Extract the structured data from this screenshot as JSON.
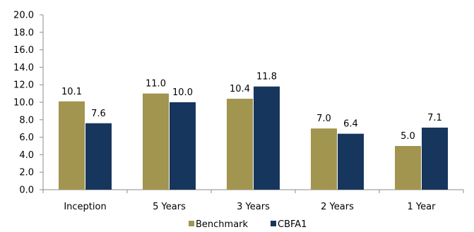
{
  "chart_data": {
    "type": "bar",
    "categories": [
      "Inception",
      "5 Years",
      "3 Years",
      "2 Years",
      "1 Year"
    ],
    "series": [
      {
        "name": "Benchmark",
        "values": [
          10.1,
          11.0,
          10.4,
          7.0,
          5.0
        ],
        "labels": [
          "10.1",
          "11.0",
          "10.4",
          "7.0",
          "5.0"
        ],
        "color": "#A19550"
      },
      {
        "name": "CBFA1",
        "values": [
          7.6,
          10.0,
          11.8,
          6.4,
          7.1
        ],
        "labels": [
          "7.6",
          "10.0",
          "11.8",
          "6.4",
          "7.1"
        ],
        "color": "#17365D"
      }
    ],
    "yticks": [
      "0.0",
      "2.0",
      "4.0",
      "6.0",
      "8.0",
      "10.0",
      "12.0",
      "14.0",
      "16.0",
      "18.0",
      "20.0"
    ],
    "ylim": [
      0,
      20
    ],
    "title": "",
    "xlabel": "",
    "ylabel": "",
    "grid": false,
    "legend": "bottom-center"
  }
}
